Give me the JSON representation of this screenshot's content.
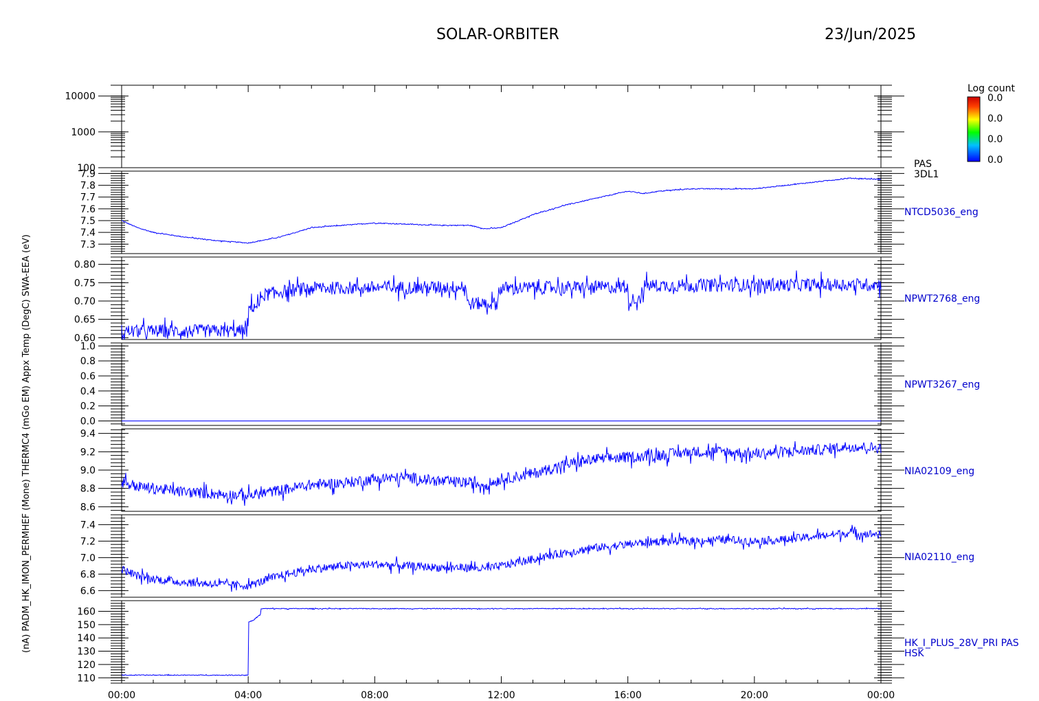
{
  "header": {
    "mission": "SOLAR-ORBITER",
    "date": "23/Jun/2025"
  },
  "colorbar": {
    "title": "Log count",
    "labels": [
      "0.0",
      "0.0",
      "0.0",
      "0.0"
    ]
  },
  "left_axis_label": "(nA) PADM_HK_IMON_PERMHEF (Mone) THERMC4 (mGo EM) Appx Temp (DegC) SWA-EEA (eV)",
  "x_tick_labels": [
    "00:00",
    "04:00",
    "08:00",
    "12:00",
    "16:00",
    "20:00",
    "00:00"
  ],
  "series_color": "#0000ff",
  "chart_data": [
    {
      "type": "heatmap",
      "panel": "PAS 3DL1",
      "right_labels": [
        "PAS",
        "3DL1"
      ],
      "y_scale": "log",
      "ylim": [
        100,
        20000
      ],
      "y_ticks": [
        100,
        1000,
        10000
      ],
      "y_tick_labels": [
        "100",
        "1000",
        "10000"
      ],
      "values": []
    },
    {
      "type": "line",
      "name": "NTCD5036_eng",
      "ylim": [
        7.22,
        7.92
      ],
      "y_ticks": [
        7.3,
        7.4,
        7.5,
        7.6,
        7.7,
        7.8,
        7.9
      ],
      "y_tick_labels": [
        "7.3",
        "7.4",
        "7.5",
        "7.6",
        "7.7",
        "7.8",
        "7.9"
      ],
      "x": [
        0,
        0.5,
        1,
        2,
        3,
        4,
        5,
        6,
        7,
        8,
        9,
        10,
        11,
        11.5,
        12,
        13,
        14,
        15,
        16,
        16.5,
        17,
        18,
        19,
        20,
        21,
        22,
        23,
        24
      ],
      "y": [
        7.5,
        7.44,
        7.4,
        7.36,
        7.33,
        7.31,
        7.36,
        7.44,
        7.46,
        7.48,
        7.47,
        7.46,
        7.46,
        7.43,
        7.44,
        7.55,
        7.63,
        7.69,
        7.75,
        7.73,
        7.75,
        7.77,
        7.77,
        7.77,
        7.8,
        7.83,
        7.86,
        7.85
      ],
      "noise": 0.004
    },
    {
      "type": "line",
      "name": "NPWT2768_eng",
      "ylim": [
        0.595,
        0.82
      ],
      "y_ticks": [
        0.6,
        0.65,
        0.7,
        0.75,
        0.8
      ],
      "y_tick_labels": [
        "0.60",
        "0.65",
        "0.70",
        "0.75",
        "0.80"
      ],
      "x": [
        0,
        4.0,
        4.01,
        4.4,
        4.41,
        5.0,
        6.0,
        10.9,
        10.91,
        11.9,
        11.91,
        16.0,
        16.01,
        16.5,
        16.51,
        24
      ],
      "y": [
        0.618,
        0.618,
        0.682,
        0.69,
        0.715,
        0.725,
        0.735,
        0.738,
        0.693,
        0.693,
        0.735,
        0.738,
        0.7,
        0.712,
        0.742,
        0.745
      ],
      "noise": 0.018
    },
    {
      "type": "line",
      "name": "NPWT3267_eng",
      "ylim": [
        -0.06,
        1.04
      ],
      "y_ticks": [
        0.0,
        0.2,
        0.4,
        0.6,
        0.8,
        1.0
      ],
      "y_tick_labels": [
        "0.0",
        "0.2",
        "0.4",
        "0.6",
        "0.8",
        "1.0"
      ],
      "x": [
        0,
        24
      ],
      "y": [
        0.0,
        0.0
      ],
      "noise": 0.0
    },
    {
      "type": "line",
      "name": "NIA02109_eng",
      "ylim": [
        8.55,
        9.45
      ],
      "y_ticks": [
        8.6,
        8.8,
        9.0,
        9.2,
        9.4
      ],
      "y_tick_labels": [
        "8.6",
        "8.8",
        "9.0",
        "9.2",
        "9.4"
      ],
      "x": [
        0,
        0.5,
        1,
        2,
        3,
        4,
        5,
        6,
        7,
        8,
        9,
        10,
        11,
        11.5,
        12,
        13,
        14,
        15,
        16,
        17,
        18,
        19,
        20,
        21,
        22,
        23,
        24
      ],
      "y": [
        8.88,
        8.82,
        8.8,
        8.76,
        8.74,
        8.72,
        8.78,
        8.84,
        8.86,
        8.9,
        8.92,
        8.88,
        8.86,
        8.84,
        8.9,
        8.96,
        9.06,
        9.12,
        9.14,
        9.16,
        9.2,
        9.2,
        9.18,
        9.2,
        9.22,
        9.26,
        9.24
      ],
      "noise": 0.06
    },
    {
      "type": "line",
      "name": "NIA02110_eng",
      "ylim": [
        6.52,
        7.52
      ],
      "y_ticks": [
        6.6,
        6.8,
        7.0,
        7.2,
        7.4
      ],
      "y_tick_labels": [
        "6.6",
        "6.8",
        "7.0",
        "7.2",
        "7.4"
      ],
      "x": [
        0,
        0.5,
        1,
        2,
        3,
        4,
        5,
        6,
        7,
        8,
        9,
        10,
        11,
        11.5,
        12,
        13,
        14,
        15,
        16,
        17,
        18,
        19,
        20,
        21,
        22,
        23,
        24
      ],
      "y": [
        6.86,
        6.78,
        6.74,
        6.7,
        6.68,
        6.66,
        6.78,
        6.86,
        6.9,
        6.92,
        6.9,
        6.88,
        6.88,
        6.86,
        6.9,
        6.98,
        7.06,
        7.12,
        7.16,
        7.2,
        7.2,
        7.22,
        7.2,
        7.22,
        7.26,
        7.3,
        7.28
      ],
      "noise": 0.05
    },
    {
      "type": "line",
      "name": "HK_I_PLUS_28V_PRI PAS HSK",
      "right_labels": [
        "HK_I_PLUS_28V_PRI PAS",
        "HSK"
      ],
      "ylim": [
        106,
        168
      ],
      "y_ticks": [
        110,
        120,
        130,
        140,
        150,
        160
      ],
      "y_tick_labels": [
        "110",
        "120",
        "130",
        "140",
        "150",
        "160"
      ],
      "x": [
        0,
        4.0,
        4.01,
        4.15,
        4.4,
        4.41,
        24
      ],
      "y": [
        112,
        112,
        152,
        153,
        158,
        162,
        162
      ],
      "noise": 0.3
    }
  ]
}
